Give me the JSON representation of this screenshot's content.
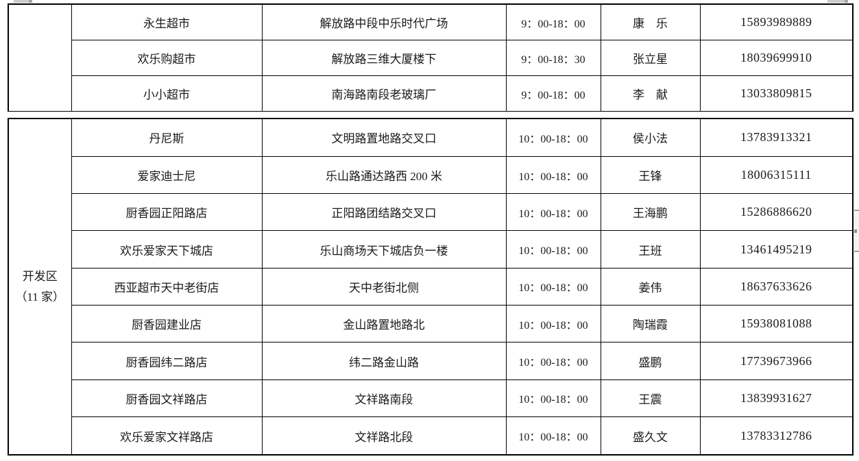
{
  "colors": {
    "page_background": "#ffffff",
    "table_border": "#000000",
    "text": "#1a1a1a",
    "scrollbar_body": "#f4f4f4",
    "scrollbar_cap": "#9e9e9e",
    "top_fragment_gray": "#cccccc"
  },
  "table": {
    "sections": [
      {
        "region_lines": [],
        "rows": [
          {
            "store": "永生超市",
            "address": "解放路中段中乐时代广场",
            "hours": "9：00-18：00",
            "contact": "康　乐",
            "phone": "15893989889"
          },
          {
            "store": "欢乐购超市",
            "address": "解放路三维大厦楼下",
            "hours": "9：00-18：30",
            "contact": "张立星",
            "phone": "18039699910"
          },
          {
            "store": "小小超市",
            "address": "南海路南段老玻璃厂",
            "hours": "9：00-18：00",
            "contact": "李　献",
            "phone": "13033809815"
          }
        ]
      },
      {
        "region_lines": [
          "开发区",
          "（11 家）"
        ],
        "rows": [
          {
            "store": "丹尼斯",
            "address": "文明路置地路交叉口",
            "hours": "10：00-18：00",
            "contact": "侯小法",
            "phone": "13783913321"
          },
          {
            "store": "爱家迪士尼",
            "address": "乐山路通达路西 200 米",
            "hours": "10：00-18：00",
            "contact": "王锋",
            "phone": "18006315111"
          },
          {
            "store": "厨香园正阳路店",
            "address": "正阳路团结路交叉口",
            "hours": "10：00-18：00",
            "contact": "王海鹏",
            "phone": "15286886620"
          },
          {
            "store": "欢乐爱家天下城店",
            "address": "乐山商场天下城店负一楼",
            "hours": "10：00-18：00",
            "contact": "王班",
            "phone": "13461495219"
          },
          {
            "store": "西亚超市天中老街店",
            "address": "天中老街北侧",
            "hours": "10：00-18：00",
            "contact": "姜伟",
            "phone": "18637633626"
          },
          {
            "store": "厨香园建业店",
            "address": "金山路置地路北",
            "hours": "10：00-18：00",
            "contact": "陶瑞霞",
            "phone": "15938081088"
          },
          {
            "store": "厨香园纬二路店",
            "address": "纬二路金山路",
            "hours": "10：00-18：00",
            "contact": "盛鹏",
            "phone": "17739673966"
          },
          {
            "store": "厨香园文祥路店",
            "address": "文祥路南段",
            "hours": "10：00-18：00",
            "contact": "王震",
            "phone": "13839931627"
          },
          {
            "store": "欢乐爱家文祥路店",
            "address": "文祥路北段",
            "hours": "10：00-18：00",
            "contact": "盛久文",
            "phone": "13783312786"
          }
        ]
      }
    ]
  }
}
